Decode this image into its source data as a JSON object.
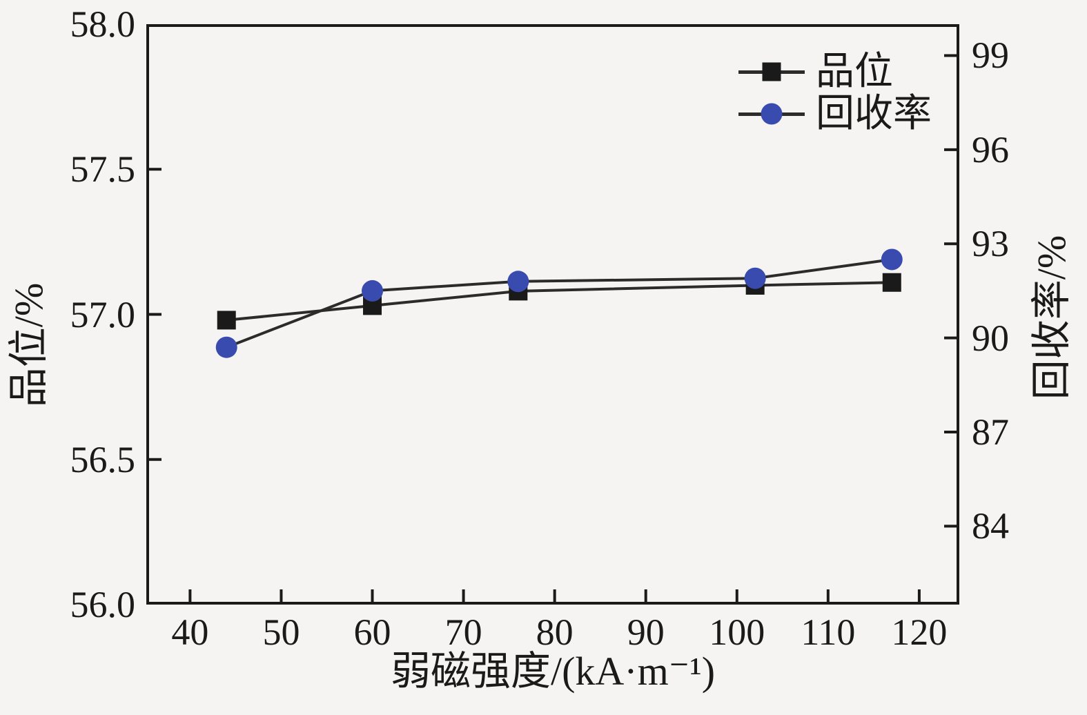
{
  "colors": {
    "background": "#f5f4f2",
    "axis": "#1a1a1a",
    "text": "#1a1a1a",
    "grade_marker": "#1a1a1a",
    "recovery_marker": "#3a4bb0",
    "line": "#2b2b2b"
  },
  "chart_data": {
    "type": "line",
    "title": "",
    "xlabel": "弱磁强度/(kA·m⁻¹)",
    "x": [
      44,
      60,
      76,
      102,
      117
    ],
    "x_ticks": [
      "40",
      "50",
      "60",
      "70",
      "80",
      "90",
      "100",
      "110",
      "120"
    ],
    "x_range": [
      35.2,
      124.4
    ],
    "left_axis": {
      "label": "品位/%",
      "range": [
        56.0,
        58.0
      ],
      "ticks": [
        "58.0",
        "57.5",
        "57.0",
        "56.5",
        "56.0"
      ]
    },
    "right_axis": {
      "label": "回收率/%",
      "range": [
        81.5,
        100.0
      ],
      "ticks": [
        "99",
        "96",
        "93",
        "90",
        "87",
        "84"
      ]
    },
    "series": [
      {
        "name": "品位",
        "axis": "left",
        "marker": "square",
        "marker_color": "#1a1a1a",
        "line_color": "#2b2b2b",
        "values": [
          56.98,
          57.03,
          57.08,
          57.1,
          57.11
        ]
      },
      {
        "name": "回收率",
        "axis": "right",
        "marker": "circle",
        "marker_color": "#3a4bb0",
        "line_color": "#2b2b2b",
        "values": [
          89.7,
          91.5,
          91.8,
          91.9,
          92.5
        ]
      }
    ],
    "legend": {
      "position": "top-right-inside",
      "border": false,
      "entries": [
        "品位",
        "回收率"
      ]
    },
    "grid": false
  }
}
